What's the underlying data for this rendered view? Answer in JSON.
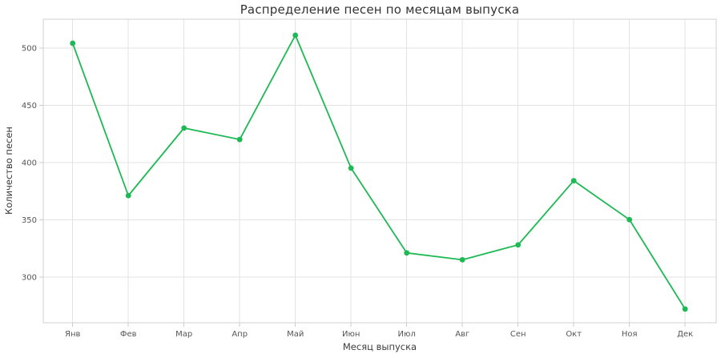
{
  "chart_data": {
    "type": "line",
    "title": "Распределение песен по месяцам выпуска",
    "xlabel": "Месяц выпуска",
    "ylabel": "Количество песен",
    "categories": [
      "Янв",
      "Фев",
      "Мар",
      "Апр",
      "Май",
      "Июн",
      "Июл",
      "Авг",
      "Сен",
      "Окт",
      "Ноя",
      "Дек"
    ],
    "values": [
      504,
      371,
      430,
      420,
      511,
      395,
      321,
      315,
      328,
      384,
      350,
      272
    ],
    "yticks": [
      300,
      350,
      400,
      450,
      500
    ],
    "ylim": [
      260,
      525
    ],
    "grid": true,
    "legend": false,
    "marker": "circle",
    "colors": {
      "line": "#1DB954",
      "marker": "#1DB954",
      "grid": "#e3e3e3",
      "spine": "#d0d0d0",
      "tick_mark": "#cccccc",
      "tick_label": "#555555",
      "axis_label": "#3d3d3d",
      "title": "#333333",
      "background": "#ffffff"
    }
  }
}
